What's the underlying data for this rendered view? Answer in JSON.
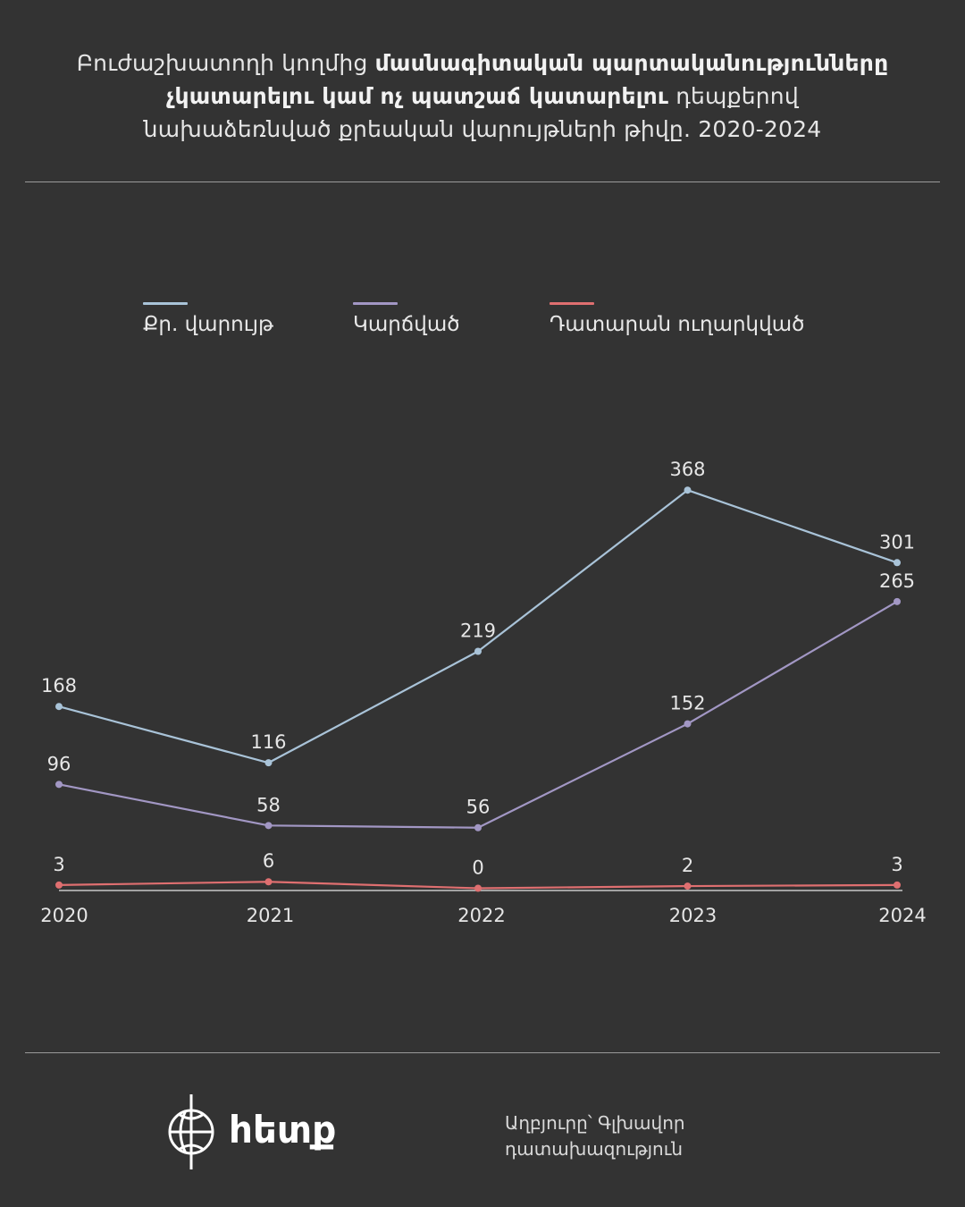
{
  "title": {
    "part1": "Բուժաշխատողի կողմից ",
    "bold_line1": "մասնագիտական պարտականությունները",
    "bold_line2": "չկատարելու կամ ոչ պատշաճ կատարելու",
    "part2": " դեպքերով",
    "line3": "նախաձեռնված քրեական վարույթների թիվը. 2020-2024"
  },
  "legend": [
    {
      "label": "Քր. վարույթ",
      "color": "#a9c3d8"
    },
    {
      "label": "Կարճված",
      "color": "#a297c4"
    },
    {
      "label": "Դատարան ուղարկված",
      "color": "#df6f70"
    }
  ],
  "chart_data": {
    "type": "line",
    "x": [
      "2020",
      "2021",
      "2022",
      "2023",
      "2024"
    ],
    "series": [
      {
        "name": "Քր. վարույթ",
        "color": "#a9c3d8",
        "values": [
          168,
          116,
          219,
          368,
          301
        ]
      },
      {
        "name": "Կարճված",
        "color": "#a297c4",
        "values": [
          96,
          58,
          56,
          152,
          265
        ]
      },
      {
        "name": "Դատարան ուղարկված",
        "color": "#df6f70",
        "values": [
          3,
          6,
          0,
          2,
          3
        ]
      }
    ],
    "ylim": [
      0,
      370
    ],
    "grid": false,
    "legend_position": "top"
  },
  "logo": {
    "name": "հետք",
    "icon": "hetq-globe-icon"
  },
  "source": {
    "line1": "Աղբյուրը՝ Գլխավոր",
    "line2": "դատախազություն"
  }
}
